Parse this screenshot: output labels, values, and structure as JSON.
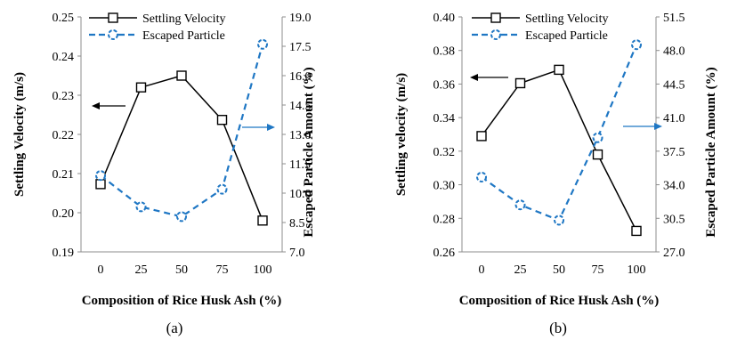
{
  "chart_data": [
    {
      "type": "line",
      "caption": "(a)",
      "x": [
        0,
        25,
        50,
        75,
        100
      ],
      "xticks": [
        "0",
        "25",
        "50",
        "75",
        "100"
      ],
      "xlabel": "Composition of Rice Husk Ash (%)",
      "ylabel": "Settling Velocity (m/s)",
      "y2label": "Escaped Particle Amount (%)",
      "ylim": [
        0.19,
        0.25
      ],
      "yticks": [
        "0.19",
        "0.20",
        "0.21",
        "0.22",
        "0.23",
        "0.24",
        "0.25"
      ],
      "y2lim": [
        7.0,
        19.0
      ],
      "y2ticks": [
        "7.0",
        "8.5",
        "10.0",
        "11.5",
        "13.0",
        "14.5",
        "16.0",
        "17.5",
        "19.0"
      ],
      "grid": false,
      "legend": "top-left",
      "series": [
        {
          "name": "Settling Velocity",
          "axis": "left",
          "values": [
            0.2073,
            0.232,
            0.235,
            0.2237,
            0.198
          ],
          "color": "#000000",
          "style": "solid",
          "marker": "square"
        },
        {
          "name": "Escaped Particle",
          "axis": "right",
          "values": [
            10.9,
            9.3,
            8.8,
            10.2,
            17.6
          ],
          "color": "#1f77c4",
          "style": "dashed",
          "marker": "circle"
        }
      ],
      "arrows": [
        "left",
        "right"
      ]
    },
    {
      "type": "line",
      "caption": "(b)",
      "x": [
        0,
        25,
        50,
        75,
        100
      ],
      "xticks": [
        "0",
        "25",
        "50",
        "75",
        "100"
      ],
      "xlabel": "Composition of Rice Husk Ash (%)",
      "ylabel": "Settling velocity (m/s)",
      "y2label": "Escaped Particle Amount (%)",
      "ylim": [
        0.26,
        0.4
      ],
      "yticks": [
        "0.26",
        "0.28",
        "0.30",
        "0.32",
        "0.34",
        "0.36",
        "0.38",
        "0.40"
      ],
      "y2lim": [
        27.0,
        51.5
      ],
      "y2ticks": [
        "27.0",
        "30.5",
        "34.0",
        "37.5",
        "41.0",
        "44.5",
        "48.0",
        "51.5"
      ],
      "grid": false,
      "legend": "top-left",
      "series": [
        {
          "name": "Settling Velocity",
          "axis": "left",
          "values": [
            0.329,
            0.3605,
            0.3685,
            0.318,
            0.2725
          ],
          "color": "#000000",
          "style": "solid",
          "marker": "square"
        },
        {
          "name": "Escaped Particle",
          "axis": "right",
          "values": [
            34.8,
            31.9,
            30.3,
            38.9,
            48.6
          ],
          "color": "#1f77c4",
          "style": "dashed",
          "marker": "circle"
        }
      ],
      "arrows": [
        "left",
        "right"
      ]
    }
  ]
}
